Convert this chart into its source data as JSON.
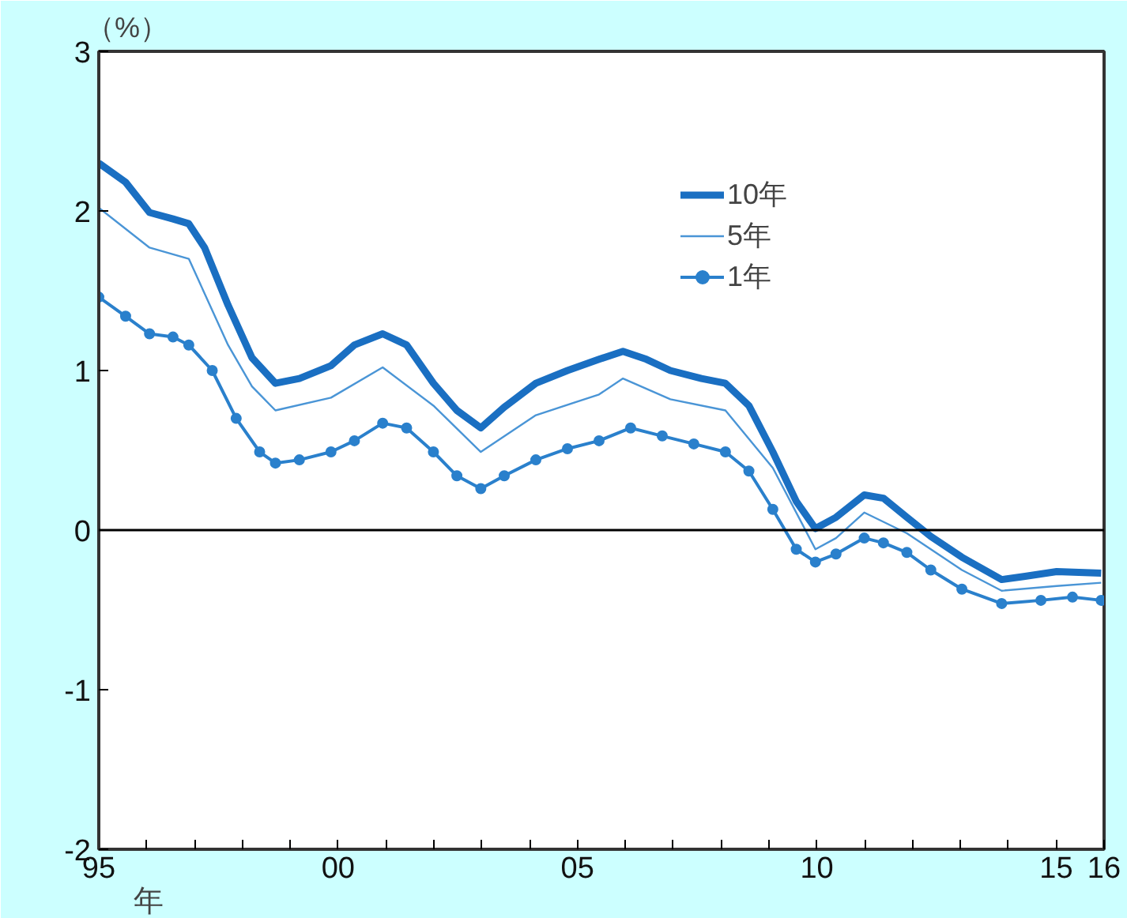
{
  "chart_data": {
    "type": "line",
    "ylabel": "（%）",
    "xlim": [
      1995,
      2016
    ],
    "ylim": [
      -2,
      3
    ],
    "xticks": [
      {
        "value": 1995,
        "label": "95"
      },
      {
        "value": 1996,
        "label": null
      },
      {
        "value": 1997,
        "label": null
      },
      {
        "value": 1998,
        "label": null
      },
      {
        "value": 1999,
        "label": null
      },
      {
        "value": 2000,
        "label": "00"
      },
      {
        "value": 2001,
        "label": null
      },
      {
        "value": 2002,
        "label": null
      },
      {
        "value": 2003,
        "label": null
      },
      {
        "value": 2004,
        "label": null
      },
      {
        "value": 2005,
        "label": "05"
      },
      {
        "value": 2006,
        "label": null
      },
      {
        "value": 2007,
        "label": null
      },
      {
        "value": 2008,
        "label": null
      },
      {
        "value": 2009,
        "label": null
      },
      {
        "value": 2010,
        "label": "10"
      },
      {
        "value": 2011,
        "label": null
      },
      {
        "value": 2012,
        "label": null
      },
      {
        "value": 2013,
        "label": null
      },
      {
        "value": 2014,
        "label": null
      },
      {
        "value": 2015,
        "label": "15"
      },
      {
        "value": 2016,
        "label": "16"
      }
    ],
    "yticks": [
      -2,
      -1,
      0,
      1,
      2,
      3
    ],
    "grid": false,
    "legend": "top",
    "line_style": "solid",
    "ref_lines": [
      {
        "axis": "y",
        "value": 0,
        "label": null,
        "color": "#000000"
      }
    ],
    "annotations": [
      "年"
    ],
    "series": [
      {
        "name": "10年",
        "color": "#1a6fc2",
        "marker": "none",
        "x": [
          1995.0,
          1995.56,
          1996.06,
          1996.55,
          1996.88,
          1997.21,
          1997.7,
          1998.2,
          1998.69,
          1999.19,
          1999.85,
          2000.34,
          2000.93,
          2001.43,
          2001.99,
          2002.48,
          2002.98,
          2003.47,
          2004.13,
          2004.79,
          2005.45,
          2005.95,
          2006.44,
          2006.94,
          2007.59,
          2008.09,
          2008.58,
          2009.08,
          2009.57,
          2009.97,
          2010.4,
          2010.99,
          2011.39,
          2011.88,
          2012.38,
          2013.03,
          2013.86,
          2014.35,
          2015.01,
          2015.94
        ],
        "values": [
          2.3,
          2.18,
          1.99,
          1.95,
          1.92,
          1.77,
          1.41,
          1.08,
          0.92,
          0.95,
          1.03,
          1.16,
          1.23,
          1.16,
          0.92,
          0.75,
          0.64,
          0.77,
          0.92,
          1.0,
          1.07,
          1.12,
          1.07,
          1.0,
          0.95,
          0.92,
          0.78,
          0.49,
          0.18,
          0.01,
          0.08,
          0.22,
          0.2,
          0.08,
          -0.04,
          -0.17,
          -0.31,
          -0.29,
          -0.26,
          -0.27
        ]
      },
      {
        "name": "5年",
        "color": "#4a95d6",
        "marker": "none",
        "x": [
          1995.0,
          1996.06,
          1996.88,
          1997.7,
          1998.2,
          1998.69,
          1999.85,
          2000.93,
          2001.99,
          2002.98,
          2004.13,
          2005.45,
          2005.95,
          2006.94,
          2008.09,
          2009.08,
          2009.97,
          2010.4,
          2010.99,
          2011.88,
          2013.03,
          2013.86,
          2015.01,
          2015.94
        ],
        "values": [
          2.02,
          1.77,
          1.7,
          1.16,
          0.9,
          0.75,
          0.83,
          1.02,
          0.78,
          0.49,
          0.72,
          0.85,
          0.95,
          0.82,
          0.75,
          0.39,
          -0.12,
          -0.05,
          0.11,
          -0.02,
          -0.25,
          -0.38,
          -0.35,
          -0.33
        ]
      },
      {
        "name": "1年",
        "color": "#2a80cc",
        "marker": "circle",
        "x": [
          1995.0,
          1995.56,
          1996.06,
          1996.55,
          1996.88,
          1997.37,
          1997.87,
          1998.36,
          1998.69,
          1999.19,
          1999.85,
          2000.34,
          2000.93,
          2001.43,
          2001.99,
          2002.48,
          2002.98,
          2003.47,
          2004.13,
          2004.79,
          2005.45,
          2006.11,
          2006.77,
          2007.43,
          2008.09,
          2008.58,
          2009.08,
          2009.57,
          2009.97,
          2010.4,
          2010.99,
          2011.39,
          2011.88,
          2012.38,
          2013.03,
          2013.86,
          2014.68,
          2015.34,
          2015.94
        ],
        "values": [
          1.46,
          1.34,
          1.23,
          1.21,
          1.16,
          1.0,
          0.7,
          0.49,
          0.42,
          0.44,
          0.49,
          0.56,
          0.67,
          0.64,
          0.49,
          0.34,
          0.26,
          0.34,
          0.44,
          0.51,
          0.56,
          0.64,
          0.59,
          0.54,
          0.49,
          0.37,
          0.13,
          -0.12,
          -0.2,
          -0.15,
          -0.05,
          -0.08,
          -0.14,
          -0.25,
          -0.37,
          -0.46,
          -0.44,
          -0.42,
          -0.44
        ]
      }
    ]
  }
}
